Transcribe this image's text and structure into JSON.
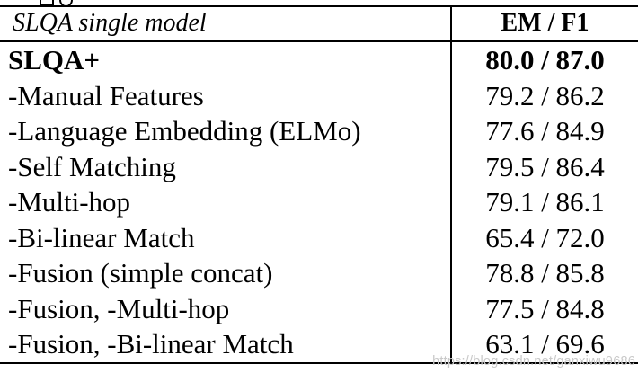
{
  "table": {
    "header": {
      "model": "SLQA single model",
      "metrics": "EM / F1"
    },
    "rows": [
      {
        "label": "SLQA+",
        "value": "80.0 / 87.0",
        "bold": true
      },
      {
        "label": "-Manual Features",
        "value": "79.2 / 86.2",
        "bold": false
      },
      {
        "label": "-Language Embedding (ELMo)",
        "value": "77.6 / 84.9",
        "bold": false
      },
      {
        "label": "-Self Matching",
        "value": "79.5 / 86.4",
        "bold": false
      },
      {
        "label": "-Multi-hop",
        "value": "79.1 / 86.1",
        "bold": false
      },
      {
        "label": "-Bi-linear Match",
        "value": "65.4 / 72.0",
        "bold": false
      },
      {
        "label": "-Fusion (simple concat)",
        "value": "78.8 / 85.8",
        "bold": false
      },
      {
        "label": "-Fusion, -Multi-hop",
        "value": "77.5 / 84.8",
        "bold": false
      },
      {
        "label": "-Fusion, -Bi-linear Match",
        "value": "63.1 / 69.6",
        "bold": false
      }
    ]
  },
  "watermark": {
    "text": "https://blog.csdn.net/ganxiwu9686",
    "color": "#c9c9c9"
  },
  "colors": {
    "background": "#ffffff",
    "text": "#000000",
    "rule": "#000000"
  }
}
